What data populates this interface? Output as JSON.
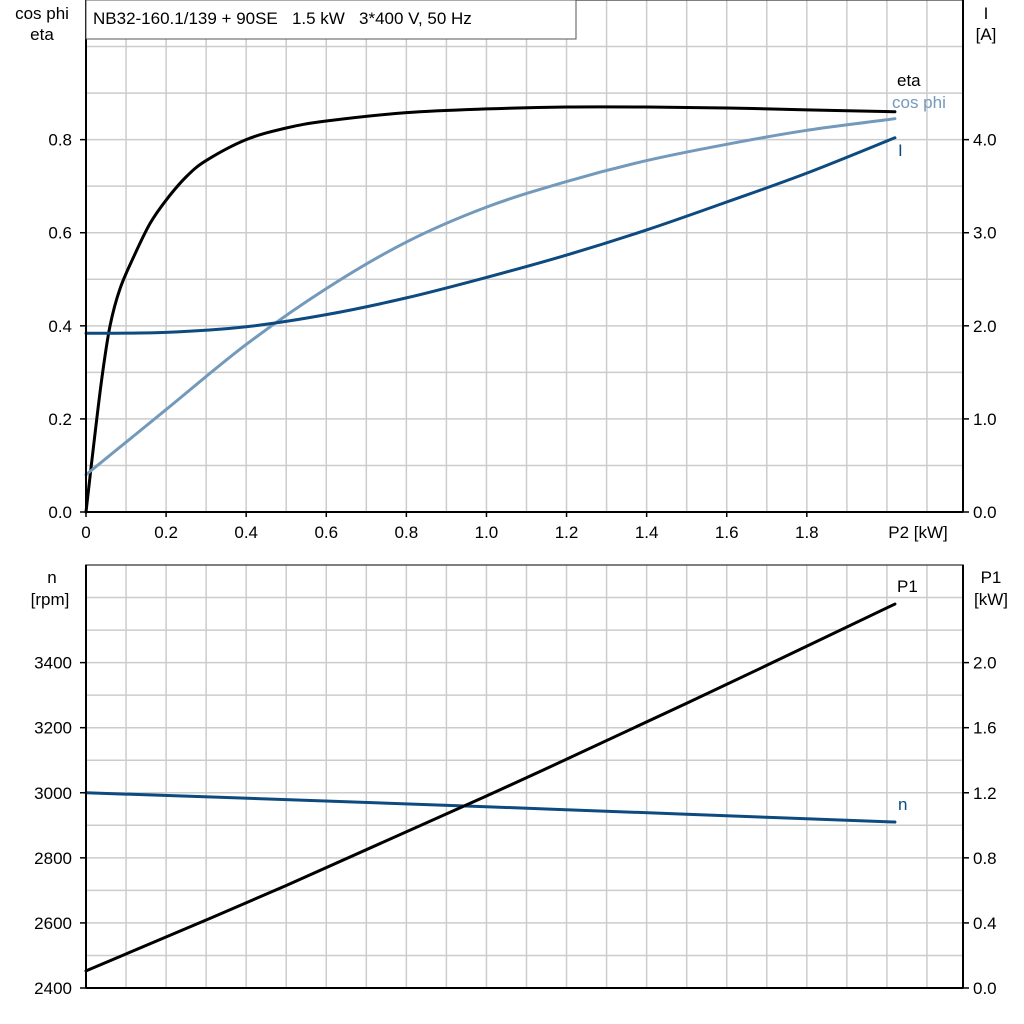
{
  "chart_data": [
    {
      "type": "line",
      "title": "NB32-160.1/139 + 90SE   1.5 kW   3*400 V, 50 Hz",
      "xlabel": "P2 [kW]",
      "ylabel_left": [
        "cos phi",
        "eta"
      ],
      "ylabel_right": [
        "I",
        "[A]"
      ],
      "xlim": [
        0,
        2.19
      ],
      "ylim_left": [
        0,
        1.1
      ],
      "ylim_right": [
        0,
        5.5
      ],
      "x_ticks": [
        "0",
        "0.2",
        "0.4",
        "0.6",
        "0.8",
        "1.0",
        "1.2",
        "1.4",
        "1.6",
        "1.8"
      ],
      "y_ticks_left": [
        "0.0",
        "0.2",
        "0.4",
        "0.6",
        "0.8"
      ],
      "y_ticks_right": [
        "0.0",
        "1.0",
        "2.0",
        "3.0",
        "4.0"
      ],
      "grid": true,
      "series": [
        {
          "name": "eta",
          "axis": "left",
          "color": "#000000",
          "x": [
            0,
            0.02,
            0.04,
            0.06,
            0.085,
            0.12,
            0.16,
            0.2,
            0.25,
            0.3,
            0.4,
            0.5,
            0.6,
            0.8,
            1.0,
            1.2,
            1.4,
            1.6,
            1.8,
            2.02
          ],
          "y": [
            0,
            0.15,
            0.29,
            0.4,
            0.48,
            0.55,
            0.62,
            0.67,
            0.72,
            0.755,
            0.8,
            0.825,
            0.84,
            0.858,
            0.866,
            0.87,
            0.87,
            0.868,
            0.864,
            0.86
          ]
        },
        {
          "name": "cos phi",
          "axis": "left",
          "color": "#7399bb",
          "x": [
            0,
            0.2,
            0.4,
            0.6,
            0.8,
            1.0,
            1.2,
            1.4,
            1.6,
            1.8,
            2.02
          ],
          "y": [
            0.08,
            0.22,
            0.36,
            0.48,
            0.58,
            0.655,
            0.71,
            0.755,
            0.79,
            0.82,
            0.845
          ]
        },
        {
          "name": "I",
          "axis": "right",
          "color": "#0d4a80",
          "x": [
            0,
            0.2,
            0.4,
            0.6,
            0.8,
            1.0,
            1.2,
            1.4,
            1.6,
            1.8,
            2.02
          ],
          "y": [
            1.92,
            1.93,
            1.99,
            2.12,
            2.3,
            2.52,
            2.76,
            3.03,
            3.33,
            3.64,
            4.02
          ]
        }
      ]
    },
    {
      "type": "line",
      "ylabel_left": [
        "n",
        "[rpm]"
      ],
      "ylabel_right": [
        "P1",
        "[kW]"
      ],
      "xlim": [
        0,
        2.19
      ],
      "ylim_left": [
        2400,
        3700
      ],
      "ylim_right": [
        0,
        2.6
      ],
      "y_ticks_left": [
        "2400",
        "2600",
        "2800",
        "3000",
        "3200",
        "3400"
      ],
      "y_ticks_right": [
        "0.0",
        "0.4",
        "0.8",
        "1.2",
        "1.6",
        "2.0"
      ],
      "grid": true,
      "series": [
        {
          "name": "n",
          "axis": "left",
          "color": "#0d4a80",
          "x": [
            0,
            0.5,
            1.0,
            1.5,
            2.02
          ],
          "y": [
            3000,
            2979,
            2957,
            2934,
            2910
          ]
        },
        {
          "name": "P1",
          "axis": "right",
          "color": "#000000",
          "x": [
            0,
            0.5,
            1.0,
            1.5,
            2.02
          ],
          "y": [
            0.105,
            0.63,
            1.18,
            1.75,
            2.36
          ]
        }
      ]
    }
  ]
}
